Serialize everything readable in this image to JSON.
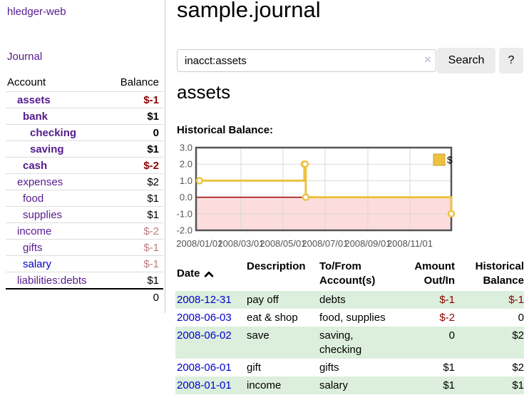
{
  "app": {
    "title": "hledger-web",
    "journal_link": "Journal"
  },
  "colors": {
    "link_purple": "#551a8b",
    "link_blue": "#0000cc",
    "negative": "#8b0000",
    "negative_faded": "#bd7b7b",
    "row_green": "#dcefdc",
    "chart_gold": "#edc240",
    "negative_region_pink": "#fcdcdc",
    "zero_line_red": "#990000"
  },
  "sidebar": {
    "header": {
      "account": "Account",
      "balance": "Balance"
    },
    "accounts": [
      {
        "name": "assets",
        "depth": 1,
        "balance": "$-1",
        "bold": true,
        "balance_style": "neg"
      },
      {
        "name": "bank",
        "depth": 2,
        "balance": "$1",
        "bold": true,
        "balance_style": "pos"
      },
      {
        "name": "checking",
        "depth": 3,
        "balance": "0",
        "bold": true,
        "balance_style": "pos"
      },
      {
        "name": "saving",
        "depth": 3,
        "balance": "$1",
        "bold": true,
        "balance_style": "pos"
      },
      {
        "name": "cash",
        "depth": 2,
        "balance": "$-2",
        "bold": true,
        "balance_style": "neg"
      },
      {
        "name": "expenses",
        "depth": 1,
        "balance": "$2",
        "bold": false,
        "balance_style": "pos"
      },
      {
        "name": "food",
        "depth": 2,
        "balance": "$1",
        "bold": false,
        "balance_style": "pos"
      },
      {
        "name": "supplies",
        "depth": 2,
        "balance": "$1",
        "bold": false,
        "balance_style": "pos"
      },
      {
        "name": "income",
        "depth": 1,
        "balance": "$-2",
        "bold": false,
        "balance_style": "fneg"
      },
      {
        "name": "gifts",
        "depth": 2,
        "balance": "$-1",
        "bold": false,
        "balance_style": "fneg"
      },
      {
        "name": "salary",
        "depth": 2,
        "balance": "$-1",
        "bold": false,
        "balance_style": "fneg",
        "link_color": "blue"
      },
      {
        "name": "liabilities:debts",
        "depth": 1,
        "balance": "$1",
        "bold": false,
        "balance_style": "pos"
      }
    ],
    "total": "0"
  },
  "main": {
    "title": "sample.journal",
    "search": {
      "value": "inacct:assets",
      "clear_icon": "×",
      "button": "Search",
      "help_button": "?"
    },
    "account_heading": "assets",
    "chart_label": "Historical Balance:"
  },
  "chart_data": {
    "type": "line",
    "step": true,
    "title": "Historical Balance",
    "xlim_days": [
      -5,
      365
    ],
    "ylim": [
      -2,
      3
    ],
    "grid": true,
    "legend_position": "top-right",
    "series": [
      {
        "name": "$",
        "color": "#edc240",
        "points": [
          {
            "date": "2008-01-01",
            "day": 0,
            "value": 1
          },
          {
            "date": "2008-06-01",
            "day": 152,
            "value": 2
          },
          {
            "date": "2008-06-02",
            "day": 153,
            "value": 2
          },
          {
            "date": "2008-06-03",
            "day": 154,
            "value": 0
          },
          {
            "date": "2008-12-31",
            "day": 365,
            "value": -1
          }
        ]
      }
    ],
    "x_ticks": [
      {
        "label": "2008/01/01",
        "day": 0
      },
      {
        "label": "2008/03/01",
        "day": 60
      },
      {
        "label": "2008/05/01",
        "day": 121
      },
      {
        "label": "2008/07/01",
        "day": 182
      },
      {
        "label": "2008/09/01",
        "day": 244
      },
      {
        "label": "2008/11/01",
        "day": 305
      }
    ],
    "y_ticks": [
      {
        "label": "3.0",
        "value": 3
      },
      {
        "label": "2.0",
        "value": 2
      },
      {
        "label": "1.0",
        "value": 1
      },
      {
        "label": "0.0",
        "value": 0
      },
      {
        "label": "-1.0",
        "value": -1
      },
      {
        "label": "-2.0",
        "value": -2
      }
    ],
    "negative_region_color": "#fcdcdc",
    "zero_line_color": "#990000",
    "legend": {
      "label": "$",
      "swatch_color": "#edc240"
    }
  },
  "register": {
    "headers": {
      "date": "Date",
      "sort_icon": "chevron-up",
      "description": "Description",
      "tofrom_line1": "To/From",
      "tofrom_line2": "Account(s)",
      "amount_line1": "Amount",
      "amount_line2": "Out/In",
      "balance_line1": "Historical",
      "balance_line2": "Balance"
    },
    "rows": [
      {
        "date": "2008-12-31",
        "description": "pay off",
        "accounts": [
          "debts"
        ],
        "amount": "$-1",
        "amount_neg": true,
        "balance": "$-1",
        "balance_neg": true
      },
      {
        "date": "2008-06-03",
        "description": "eat & shop",
        "accounts": [
          "food, supplies"
        ],
        "amount": "$-2",
        "amount_neg": true,
        "balance": "0",
        "balance_neg": false
      },
      {
        "date": "2008-06-02",
        "description": "save",
        "accounts": [
          "saving,",
          "checking"
        ],
        "amount": "0",
        "amount_neg": false,
        "balance": "$2",
        "balance_neg": false
      },
      {
        "date": "2008-06-01",
        "description": "gift",
        "accounts": [
          "gifts"
        ],
        "amount": "$1",
        "amount_neg": false,
        "balance": "$2",
        "balance_neg": false
      },
      {
        "date": "2008-01-01",
        "description": "income",
        "accounts": [
          "salary"
        ],
        "amount": "$1",
        "amount_neg": false,
        "balance": "$1",
        "balance_neg": false
      }
    ]
  }
}
